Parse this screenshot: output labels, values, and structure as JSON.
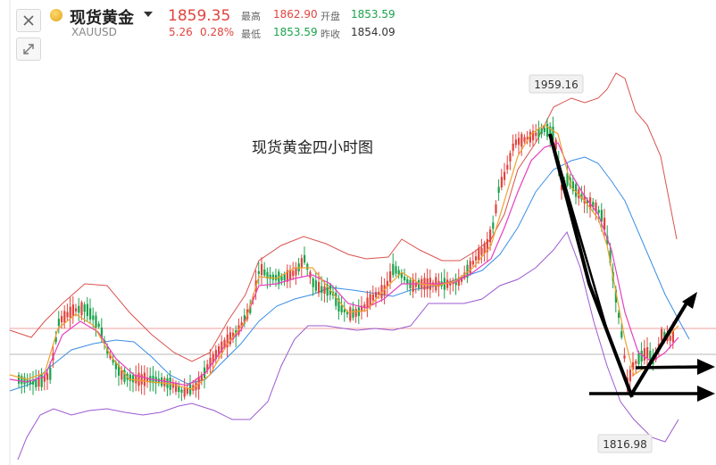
{
  "header": {
    "name": "现货黄金",
    "symbol": "XAUUSD",
    "price": "1859.35",
    "change": "5.26",
    "change_pct": "0.28%",
    "quotes": {
      "high_label": "最高",
      "high": "1862.90",
      "open_label": "开盘",
      "open": "1853.59",
      "low_label": "最低",
      "low": "1853.59",
      "prev_close_label": "昨收",
      "prev_close": "1854.09"
    }
  },
  "chart": {
    "annotation": "现货黄金四小时图",
    "max_label": "1959.16",
    "min_label": "1816.98"
  },
  "colors": {
    "up": "#e0443e",
    "down": "#1aa34a"
  }
}
